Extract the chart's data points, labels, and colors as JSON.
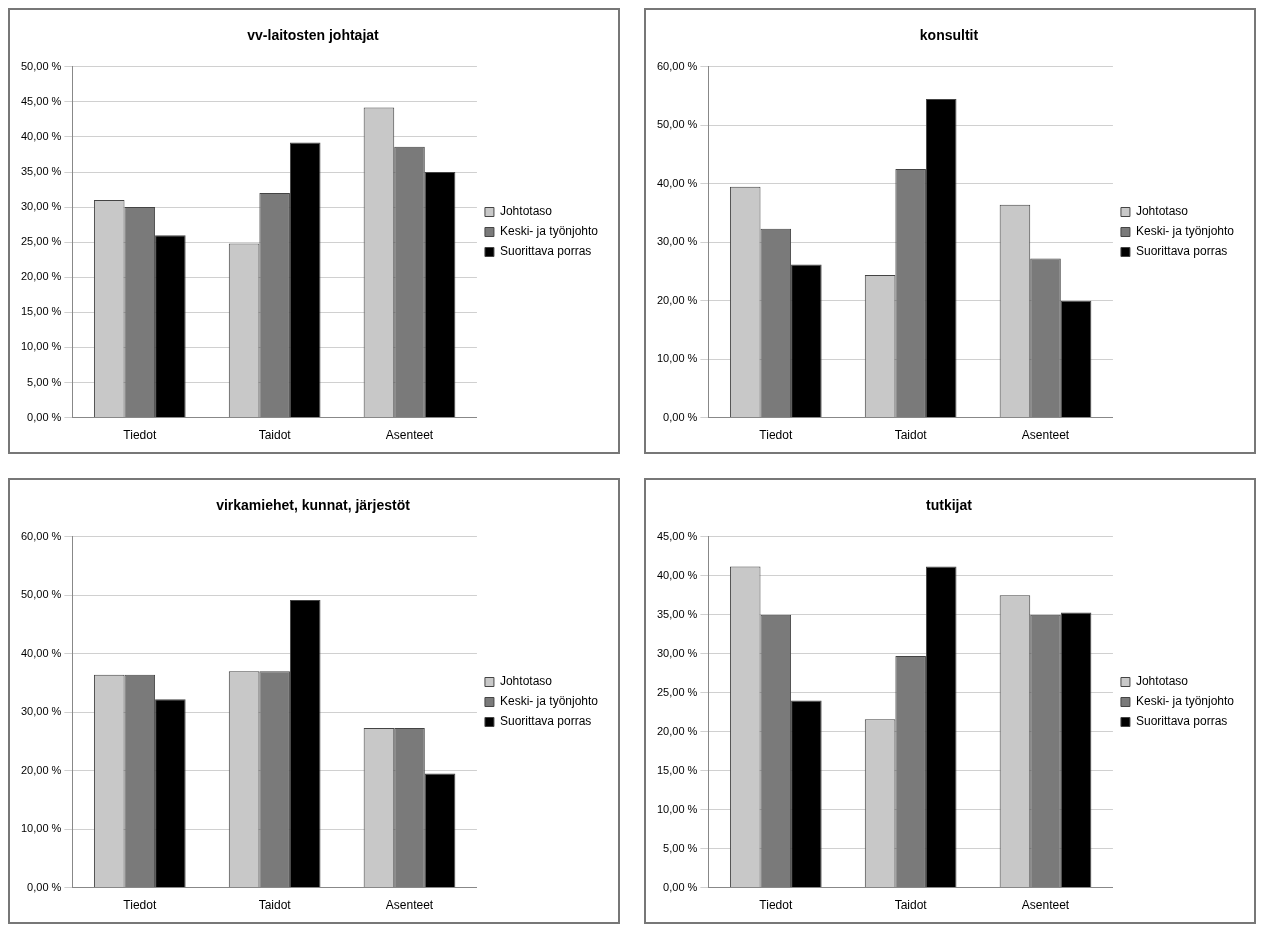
{
  "chart_data": [
    {
      "type": "bar",
      "title": "vv-laitosten johtajat",
      "categories": [
        "Tiedot",
        "Taidot",
        "Asenteet"
      ],
      "series": [
        {
          "name": "Johtotaso",
          "color": "#c8c8c8",
          "values": [
            31,
            24.8,
            44.2
          ]
        },
        {
          "name": "Keski- ja työnjohto",
          "color": "#7a7a7a",
          "values": [
            30,
            32,
            38.6
          ]
        },
        {
          "name": "Suorittava porras",
          "color": "#000000",
          "values": [
            26,
            39.2,
            35
          ]
        }
      ],
      "ylim": [
        0,
        50
      ],
      "yticks": [
        {
          "value": 0,
          "label": "0,00 %"
        },
        {
          "value": 5,
          "label": "5,00 %"
        },
        {
          "value": 10,
          "label": "10,00 %"
        },
        {
          "value": 15,
          "label": "15,00 %"
        },
        {
          "value": 20,
          "label": "20,00 %"
        },
        {
          "value": 25,
          "label": "25,00 %"
        },
        {
          "value": 30,
          "label": "30,00 %"
        },
        {
          "value": 35,
          "label": "35,00 %"
        },
        {
          "value": 40,
          "label": "40,00 %"
        },
        {
          "value": 45,
          "label": "45,00 %"
        },
        {
          "value": 50,
          "label": "50,00 %"
        }
      ],
      "grid": "y",
      "legend": "right"
    },
    {
      "type": "bar",
      "title": "konsultit",
      "categories": [
        "Tiedot",
        "Taidot",
        "Asenteet"
      ],
      "series": [
        {
          "name": "Johtotaso",
          "color": "#c8c8c8",
          "values": [
            39.5,
            24.4,
            36.4
          ]
        },
        {
          "name": "Keski- ja työnjohto",
          "color": "#7a7a7a",
          "values": [
            32.3,
            42.5,
            27.2
          ]
        },
        {
          "name": "Suorittava porras",
          "color": "#000000",
          "values": [
            26.2,
            54.5,
            20
          ]
        }
      ],
      "ylim": [
        0,
        60
      ],
      "yticks": [
        {
          "value": 0,
          "label": "0,00 %"
        },
        {
          "value": 10,
          "label": "10,00 %"
        },
        {
          "value": 20,
          "label": "20,00 %"
        },
        {
          "value": 30,
          "label": "30,00 %"
        },
        {
          "value": 40,
          "label": "40,00 %"
        },
        {
          "value": 50,
          "label": "50,00 %"
        },
        {
          "value": 60,
          "label": "60,00 %"
        }
      ],
      "grid": "y",
      "legend": "right"
    },
    {
      "type": "bar",
      "title": "virkamiehet, kunnat, järjestöt",
      "categories": [
        "Tiedot",
        "Taidot",
        "Asenteet"
      ],
      "series": [
        {
          "name": "Johtotaso",
          "color": "#c8c8c8",
          "values": [
            36.4,
            37,
            27.3
          ]
        },
        {
          "name": "Keski- ja työnjohto",
          "color": "#7a7a7a",
          "values": [
            36.4,
            37,
            27.3
          ]
        },
        {
          "name": "Suorittava porras",
          "color": "#000000",
          "values": [
            32.2,
            49.2,
            19.5
          ]
        }
      ],
      "ylim": [
        0,
        60
      ],
      "yticks": [
        {
          "value": 0,
          "label": "0,00 %"
        },
        {
          "value": 10,
          "label": "10,00 %"
        },
        {
          "value": 20,
          "label": "20,00 %"
        },
        {
          "value": 30,
          "label": "30,00 %"
        },
        {
          "value": 40,
          "label": "40,00 %"
        },
        {
          "value": 50,
          "label": "50,00 %"
        },
        {
          "value": 60,
          "label": "60,00 %"
        }
      ],
      "grid": "y",
      "legend": "right"
    },
    {
      "type": "bar",
      "title": "tutkijat",
      "categories": [
        "Tiedot",
        "Taidot",
        "Asenteet"
      ],
      "series": [
        {
          "name": "Johtotaso",
          "color": "#c8c8c8",
          "values": [
            41.2,
            21.6,
            37.5
          ]
        },
        {
          "name": "Keski- ja työnjohto",
          "color": "#7a7a7a",
          "values": [
            35,
            29.7,
            35
          ]
        },
        {
          "name": "Suorittava porras",
          "color": "#000000",
          "values": [
            24,
            41.2,
            35.3
          ]
        }
      ],
      "ylim": [
        0,
        45
      ],
      "yticks": [
        {
          "value": 0,
          "label": "0,00 %"
        },
        {
          "value": 5,
          "label": "5,00 %"
        },
        {
          "value": 10,
          "label": "10,00 %"
        },
        {
          "value": 15,
          "label": "15,00 %"
        },
        {
          "value": 20,
          "label": "20,00 %"
        },
        {
          "value": 25,
          "label": "25,00 %"
        },
        {
          "value": 30,
          "label": "30,00 %"
        },
        {
          "value": 35,
          "label": "35,00 %"
        },
        {
          "value": 40,
          "label": "40,00 %"
        },
        {
          "value": 45,
          "label": "45,00 %"
        }
      ],
      "grid": "y",
      "legend": "right"
    }
  ]
}
